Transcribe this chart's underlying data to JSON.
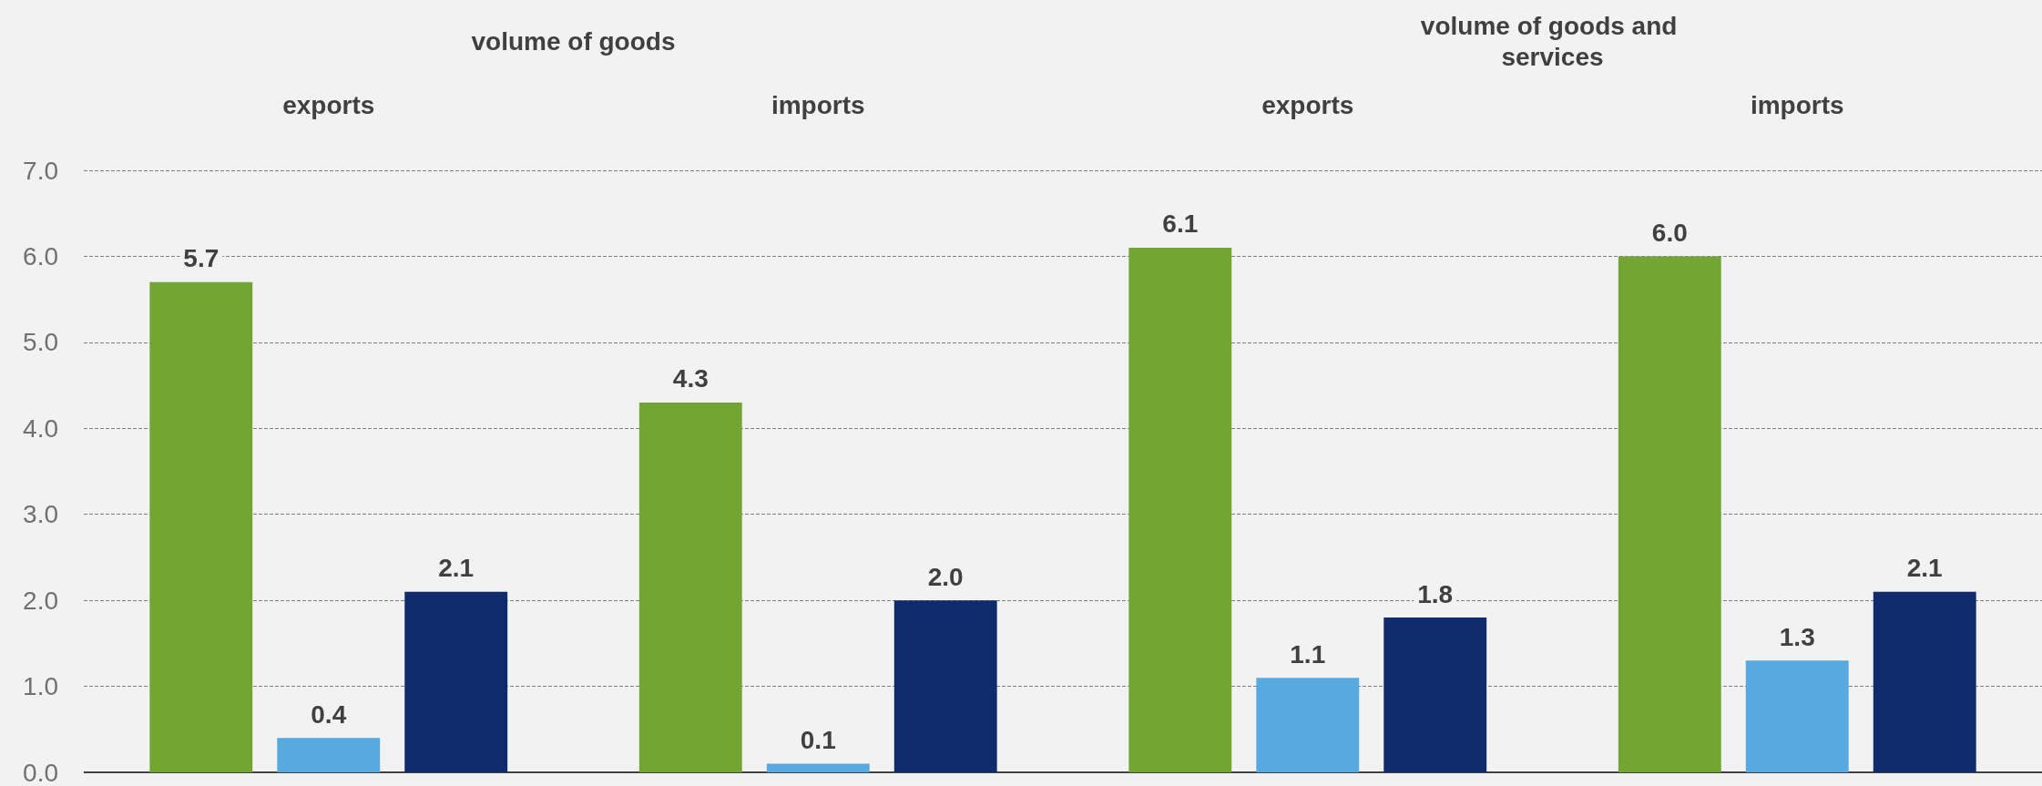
{
  "chart_data": {
    "type": "bar",
    "categories": [
      "exports",
      "imports",
      "exports",
      "imports"
    ],
    "series": [
      {
        "color": "#72a533",
        "values": [
          5.7,
          4.3,
          6.1,
          6.0
        ],
        "value_labels": [
          "5.7",
          "4.3",
          "6.1",
          "6.0"
        ]
      },
      {
        "color": "#57a9e0",
        "values": [
          0.4,
          0.1,
          1.1,
          1.3
        ],
        "value_labels": [
          "0.4",
          "0.1",
          "1.1",
          "1.3"
        ]
      },
      {
        "color": "#0f2b6b",
        "values": [
          2.1,
          2.0,
          1.8,
          2.1
        ],
        "value_labels": [
          "2.1",
          "2.0",
          "1.8",
          "2.1"
        ]
      }
    ],
    "ylim": [
      0,
      7
    ],
    "yticks": [
      {
        "value": 0,
        "label": "0.0"
      },
      {
        "value": 1,
        "label": "1.0"
      },
      {
        "value": 2,
        "label": "2.0"
      },
      {
        "value": 3,
        "label": "3.0"
      },
      {
        "value": 4,
        "label": "4.0"
      },
      {
        "value": 5,
        "label": "5.0"
      },
      {
        "value": 6,
        "label": "6.0"
      },
      {
        "value": 7,
        "label": "7.0"
      }
    ],
    "grid": "y",
    "annotations": [
      "volume of goods",
      "volume of goods and services"
    ]
  }
}
